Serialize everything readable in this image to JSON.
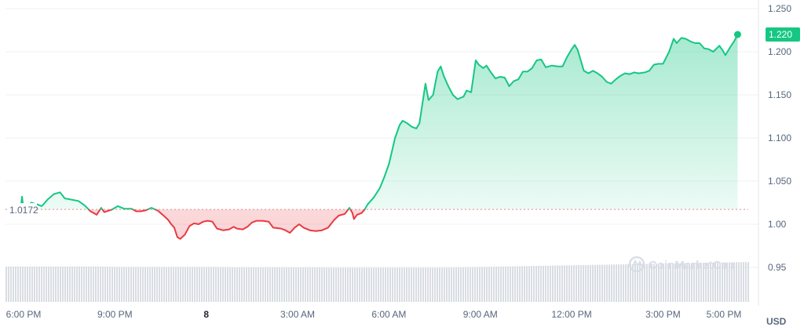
{
  "chart_data": {
    "type": "area",
    "currency": "USD",
    "base_value": 1.0172,
    "base_label": "1.0172",
    "current_value": 1.22,
    "current_label": "1.220",
    "ylim": [
      0.91,
      1.26
    ],
    "y_ticks": [
      {
        "value": 1.25,
        "label": "1.250"
      },
      {
        "value": 1.2,
        "label": "1.200"
      },
      {
        "value": 1.15,
        "label": "1.150"
      },
      {
        "value": 1.1,
        "label": "1.100"
      },
      {
        "value": 1.05,
        "label": "1.050"
      },
      {
        "value": 1.0,
        "label": "1.00"
      },
      {
        "value": 0.95,
        "label": "0.95"
      }
    ],
    "x_ticks": [
      {
        "hour": 18,
        "label": "6:00 PM",
        "bold": false
      },
      {
        "hour": 21,
        "label": "9:00 PM",
        "bold": false
      },
      {
        "hour": 24,
        "label": "8",
        "bold": true
      },
      {
        "hour": 27,
        "label": "3:00 AM",
        "bold": false
      },
      {
        "hour": 30,
        "label": "6:00 AM",
        "bold": false
      },
      {
        "hour": 33,
        "label": "9:00 AM",
        "bold": false
      },
      {
        "hour": 36,
        "label": "12:00 PM",
        "bold": false
      },
      {
        "hour": 39,
        "label": "3:00 PM",
        "bold": false
      },
      {
        "hour": 41,
        "label": "5:00 PM",
        "bold": false
      }
    ],
    "series": [
      {
        "values": [
          [
            17.9,
            1.017
          ],
          [
            17.95,
            1.032
          ],
          [
            18.0,
            1.016
          ],
          [
            18.1,
            1.02
          ],
          [
            18.25,
            1.025
          ],
          [
            18.45,
            1.023
          ],
          [
            18.6,
            1.021
          ],
          [
            18.8,
            1.029
          ],
          [
            19.0,
            1.035
          ],
          [
            19.2,
            1.037
          ],
          [
            19.35,
            1.03
          ],
          [
            19.5,
            1.029
          ],
          [
            19.8,
            1.027
          ],
          [
            20.0,
            1.022
          ],
          [
            20.2,
            1.015
          ],
          [
            20.4,
            1.011
          ],
          [
            20.55,
            1.019
          ],
          [
            20.65,
            1.014
          ],
          [
            20.9,
            1.017
          ],
          [
            21.1,
            1.021
          ],
          [
            21.3,
            1.018
          ],
          [
            21.55,
            1.018
          ],
          [
            21.7,
            1.015
          ],
          [
            21.85,
            1.015
          ],
          [
            22.0,
            1.016
          ],
          [
            22.2,
            1.019
          ],
          [
            22.4,
            1.016
          ],
          [
            22.5,
            1.013
          ],
          [
            22.6,
            1.01
          ],
          [
            22.75,
            1.005
          ],
          [
            22.85,
            1.0
          ],
          [
            22.95,
            0.996
          ],
          [
            23.05,
            0.985
          ],
          [
            23.15,
            0.983
          ],
          [
            23.3,
            0.988
          ],
          [
            23.45,
            0.998
          ],
          [
            23.6,
            1.001
          ],
          [
            23.75,
            1.0
          ],
          [
            23.9,
            1.003
          ],
          [
            24.05,
            1.004
          ],
          [
            24.2,
            1.003
          ],
          [
            24.35,
            0.995
          ],
          [
            24.55,
            0.993
          ],
          [
            24.75,
            0.994
          ],
          [
            24.9,
            0.997
          ],
          [
            25.0,
            0.995
          ],
          [
            25.2,
            0.994
          ],
          [
            25.35,
            0.997
          ],
          [
            25.5,
            1.002
          ],
          [
            25.65,
            1.004
          ],
          [
            25.85,
            1.004
          ],
          [
            26.05,
            1.003
          ],
          [
            26.2,
            0.996
          ],
          [
            26.45,
            0.995
          ],
          [
            26.6,
            0.993
          ],
          [
            26.75,
            0.99
          ],
          [
            26.9,
            0.996
          ],
          [
            27.05,
            1.0
          ],
          [
            27.2,
            0.996
          ],
          [
            27.4,
            0.993
          ],
          [
            27.6,
            0.992
          ],
          [
            27.8,
            0.993
          ],
          [
            28.0,
            0.996
          ],
          [
            28.2,
            1.005
          ],
          [
            28.35,
            1.01
          ],
          [
            28.55,
            1.012
          ],
          [
            28.7,
            1.019
          ],
          [
            28.8,
            1.013
          ],
          [
            28.85,
            1.006
          ],
          [
            28.95,
            1.011
          ],
          [
            29.1,
            1.013
          ],
          [
            29.2,
            1.017
          ],
          [
            29.3,
            1.023
          ],
          [
            29.5,
            1.031
          ],
          [
            29.7,
            1.042
          ],
          [
            29.85,
            1.055
          ],
          [
            30.0,
            1.07
          ],
          [
            30.1,
            1.085
          ],
          [
            30.2,
            1.1
          ],
          [
            30.35,
            1.115
          ],
          [
            30.45,
            1.12
          ],
          [
            30.6,
            1.117
          ],
          [
            30.75,
            1.113
          ],
          [
            30.9,
            1.111
          ],
          [
            31.0,
            1.117
          ],
          [
            31.2,
            1.163
          ],
          [
            31.3,
            1.144
          ],
          [
            31.45,
            1.15
          ],
          [
            31.6,
            1.177
          ],
          [
            31.7,
            1.183
          ],
          [
            31.8,
            1.172
          ],
          [
            31.95,
            1.16
          ],
          [
            32.1,
            1.15
          ],
          [
            32.25,
            1.145
          ],
          [
            32.45,
            1.148
          ],
          [
            32.55,
            1.155
          ],
          [
            32.7,
            1.153
          ],
          [
            32.85,
            1.19
          ],
          [
            32.95,
            1.185
          ],
          [
            33.1,
            1.181
          ],
          [
            33.2,
            1.184
          ],
          [
            33.35,
            1.176
          ],
          [
            33.5,
            1.169
          ],
          [
            33.65,
            1.171
          ],
          [
            33.8,
            1.17
          ],
          [
            33.95,
            1.16
          ],
          [
            34.1,
            1.166
          ],
          [
            34.25,
            1.168
          ],
          [
            34.4,
            1.177
          ],
          [
            34.55,
            1.177
          ],
          [
            34.7,
            1.181
          ],
          [
            34.85,
            1.19
          ],
          [
            35.0,
            1.191
          ],
          [
            35.15,
            1.182
          ],
          [
            35.35,
            1.184
          ],
          [
            35.55,
            1.183
          ],
          [
            35.7,
            1.183
          ],
          [
            35.85,
            1.194
          ],
          [
            36.0,
            1.203
          ],
          [
            36.1,
            1.208
          ],
          [
            36.2,
            1.202
          ],
          [
            36.3,
            1.19
          ],
          [
            36.4,
            1.178
          ],
          [
            36.55,
            1.175
          ],
          [
            36.7,
            1.178
          ],
          [
            36.85,
            1.175
          ],
          [
            37.0,
            1.171
          ],
          [
            37.15,
            1.165
          ],
          [
            37.3,
            1.163
          ],
          [
            37.45,
            1.168
          ],
          [
            37.6,
            1.172
          ],
          [
            37.75,
            1.175
          ],
          [
            37.9,
            1.174
          ],
          [
            38.05,
            1.176
          ],
          [
            38.2,
            1.175
          ],
          [
            38.4,
            1.176
          ],
          [
            38.55,
            1.178
          ],
          [
            38.7,
            1.185
          ],
          [
            38.85,
            1.186
          ],
          [
            39.0,
            1.186
          ],
          [
            39.2,
            1.2
          ],
          [
            39.35,
            1.215
          ],
          [
            39.45,
            1.21
          ],
          [
            39.6,
            1.216
          ],
          [
            39.75,
            1.215
          ],
          [
            39.9,
            1.212
          ],
          [
            40.05,
            1.21
          ],
          [
            40.2,
            1.21
          ],
          [
            40.35,
            1.204
          ],
          [
            40.5,
            1.203
          ],
          [
            40.65,
            1.2
          ],
          [
            40.85,
            1.207
          ],
          [
            40.95,
            1.202
          ],
          [
            41.05,
            1.196
          ],
          [
            41.2,
            1.205
          ],
          [
            41.35,
            1.213
          ],
          [
            41.45,
            1.22
          ]
        ]
      }
    ],
    "volume": {
      "values": [
        1.0,
        1.0,
        1.0,
        1.0,
        1.0,
        1.0,
        0.99,
        0.99,
        0.99,
        0.99,
        0.99,
        0.99,
        0.98,
        0.98,
        0.98,
        0.98,
        0.98,
        0.97,
        0.97,
        0.97,
        0.97,
        0.97,
        0.97,
        0.97,
        0.98,
        0.99,
        1.0,
        1.01,
        1.02,
        1.03,
        1.04,
        1.05,
        1.06,
        1.07,
        1.08,
        1.09,
        1.1,
        1.11,
        1.12,
        1.13
      ]
    }
  },
  "watermark": {
    "text": "CoinMarketCap",
    "icon": "coinmarketcap-logo-icon"
  },
  "colors": {
    "up": "#16c784",
    "down": "#ea3943",
    "volume": "#d9dde3",
    "grid": "#eff2f5",
    "base_line": "#e08a8f"
  }
}
